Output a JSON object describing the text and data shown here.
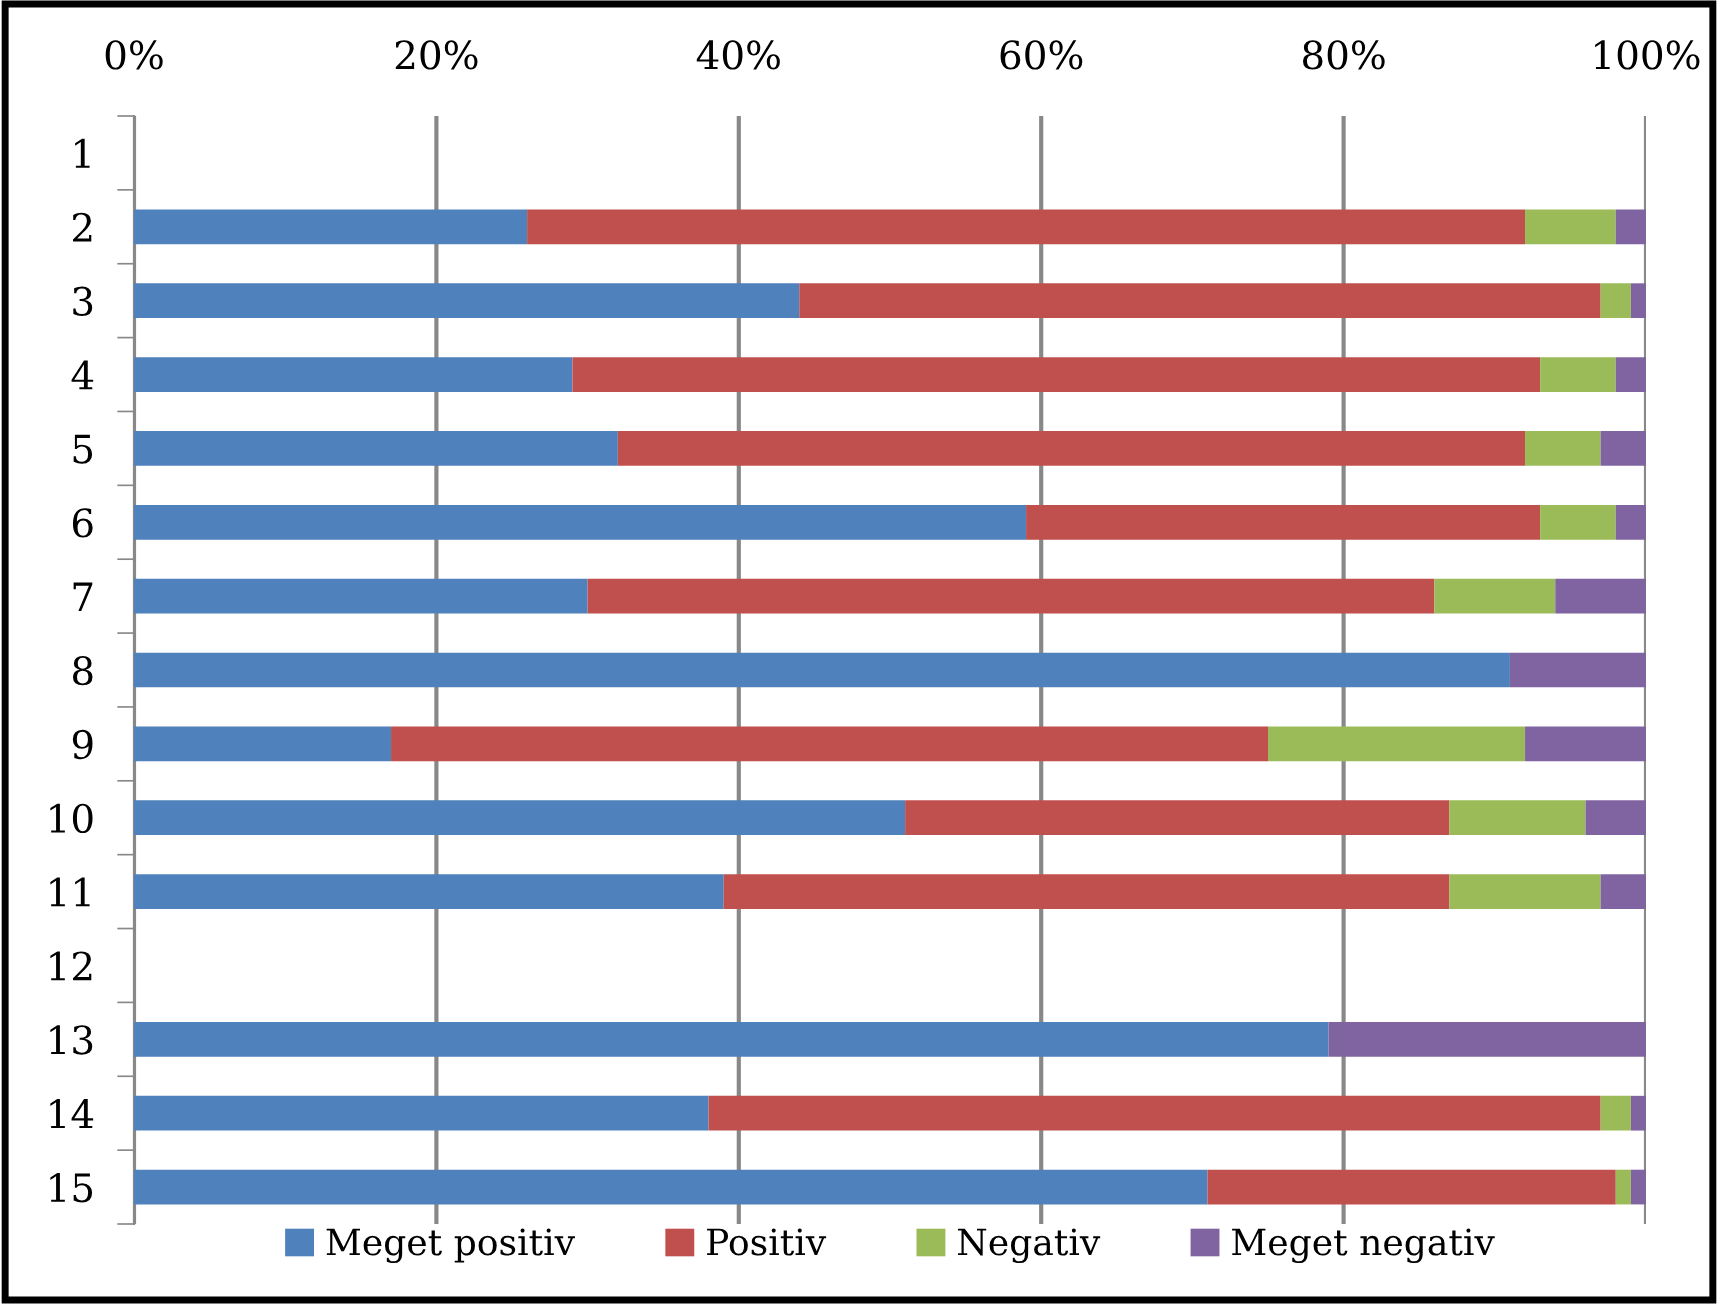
{
  "chart_data": {
    "type": "bar",
    "orientation": "horizontal",
    "stacked": true,
    "categories": [
      "1",
      "2",
      "3",
      "4",
      "5",
      "6",
      "7",
      "8",
      "9",
      "10",
      "11",
      "12",
      "13",
      "14",
      "15"
    ],
    "series": [
      {
        "name": "Meget positiv",
        "color": "#4f81bd",
        "values": [
          null,
          26,
          44,
          29,
          32,
          59,
          30,
          91,
          17,
          51,
          39,
          null,
          79,
          38,
          71
        ]
      },
      {
        "name": "Positiv",
        "color": "#c0504d",
        "values": [
          null,
          66,
          53,
          64,
          60,
          34,
          56,
          0,
          58,
          36,
          48,
          null,
          0,
          59,
          27
        ]
      },
      {
        "name": "Negativ",
        "color": "#9bbb59",
        "values": [
          null,
          6,
          2,
          5,
          5,
          5,
          8,
          0,
          17,
          9,
          10,
          null,
          0,
          2,
          1
        ]
      },
      {
        "name": "Meget negativ",
        "color": "#8064a2",
        "values": [
          null,
          2,
          1,
          2,
          3,
          2,
          6,
          9,
          8,
          4,
          3,
          null,
          21,
          1,
          1
        ]
      }
    ],
    "xlim": [
      0,
      100
    ],
    "xticks": [
      {
        "value": 0,
        "label": "0%"
      },
      {
        "value": 20,
        "label": "20%"
      },
      {
        "value": 40,
        "label": "40%"
      },
      {
        "value": 60,
        "label": "60%"
      },
      {
        "value": 80,
        "label": "80%"
      },
      {
        "value": 100,
        "label": "100%"
      }
    ],
    "grid": "x",
    "legend": "bottom"
  }
}
